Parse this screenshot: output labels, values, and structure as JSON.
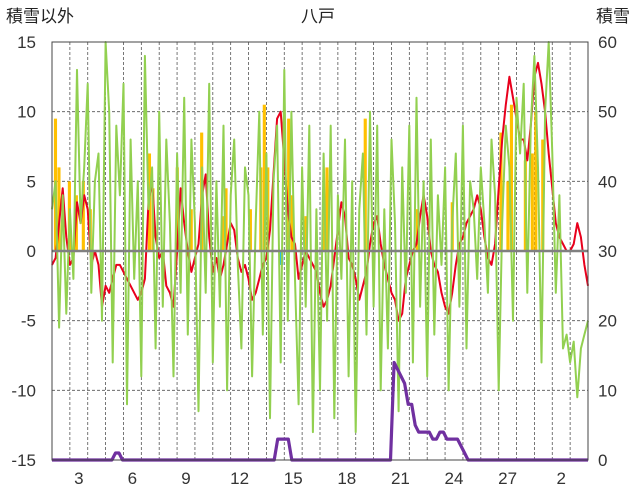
{
  "chart_data": {
    "type": "line",
    "title": "八戸",
    "y_left_label": "積雪以外",
    "y_right_label": "積雪",
    "ylim_left": [
      -15,
      15
    ],
    "ylim_right": [
      0,
      60
    ],
    "y_left_ticks": [
      "15",
      "10",
      "5",
      "0",
      "-5",
      "-10",
      "-15"
    ],
    "y_right_ticks": [
      "60",
      "50",
      "40",
      "30",
      "20",
      "10",
      "0"
    ],
    "x_ticks": [
      "3",
      "6",
      "9",
      "12",
      "15",
      "18",
      "21",
      "24",
      "27",
      "2"
    ],
    "grid": true,
    "colors": {
      "precip": "#ffc000",
      "temperature": "#e8001c",
      "wind": "#92d050",
      "snow": "#7030a0",
      "sunshine": "#00b0f0",
      "zero_line": "#808080"
    },
    "series": [
      {
        "key": "temperature",
        "axis": "left",
        "values": [
          -1.0,
          -0.5,
          2.0,
          4.5,
          1.0,
          -1.0,
          -0.5,
          3.5,
          2.0,
          4.0,
          3.0,
          -1.0,
          0.0,
          -1.0,
          -4.0,
          -2.5,
          -3.0,
          -2.0,
          -1.0,
          -1.0,
          -1.5,
          -2.0,
          -2.5,
          -3.0,
          -3.5,
          -3.0,
          -2.0,
          3.5,
          5.0,
          1.0,
          -0.5,
          0.0,
          -2.5,
          -3.0,
          -4.0,
          0.0,
          4.5,
          2.0,
          0.0,
          -1.5,
          -0.5,
          0.5,
          4.0,
          5.5,
          1.0,
          -1.5,
          -0.5,
          -2.0,
          -1.0,
          0.5,
          2.0,
          1.5,
          -0.5,
          -1.5,
          -1.0,
          -2.0,
          -3.5,
          -3.0,
          -2.0,
          -1.0,
          -0.5,
          1.5,
          5.5,
          9.5,
          10.0,
          6.5,
          3.0,
          1.0,
          0.5,
          -2.0,
          -1.0,
          0.0,
          -0.5,
          -1.0,
          -1.5,
          -3.0,
          -4.0,
          -3.5,
          -2.5,
          -0.5,
          1.5,
          3.5,
          2.5,
          -0.5,
          -1.0,
          -2.0,
          -3.5,
          -2.5,
          -1.5,
          0.5,
          2.0,
          2.5,
          0.5,
          -1.0,
          -2.0,
          -3.0,
          -3.5,
          -5.0,
          -4.5,
          -2.0,
          -1.0,
          0.0,
          0.5,
          2.5,
          4.0,
          2.5,
          0.0,
          -1.0,
          -1.5,
          -3.0,
          -4.0,
          -4.5,
          -3.0,
          -1.0,
          0.5,
          1.0,
          2.0,
          2.5,
          3.0,
          4.0,
          3.0,
          1.0,
          -0.5,
          -1.0,
          0.5,
          4.5,
          8.0,
          10.5,
          12.5,
          11.0,
          9.5,
          8.0,
          8.0,
          6.5,
          9.0,
          12.5,
          13.5,
          12.0,
          10.0,
          7.0,
          4.5,
          2.0,
          1.0,
          0.5,
          0.0,
          0.0,
          0.5,
          2.0,
          1.0,
          -1.0,
          -2.5
        ]
      },
      {
        "key": "wind",
        "axis": "left",
        "values": [
          3.0,
          5.0,
          -5.5,
          4.0,
          -4.5,
          3.0,
          -2.0,
          13.0,
          2.0,
          6.0,
          12.0,
          -3.0,
          5.0,
          7.0,
          -5.0,
          15.0,
          10.0,
          -8.0,
          9.0,
          4.0,
          12.0,
          -11.0,
          8.0,
          -2.0,
          5.0,
          -9.0,
          14.0,
          3.0,
          6.0,
          -7.0,
          10.0,
          -4.0,
          8.0,
          2.0,
          -9.0,
          7.0,
          -3.0,
          11.0,
          -6.0,
          8.0,
          2.0,
          -11.5,
          6.0,
          -3.0,
          12.0,
          -8.0,
          5.0,
          -4.0,
          9.0,
          -10.0,
          4.0,
          8.0,
          -1.0,
          -7.0,
          6.0,
          4.0,
          -9.0,
          2.0,
          10.0,
          -6.0,
          7.0,
          -12.0,
          5.0,
          9.0,
          -8.0,
          13.0,
          -5.0,
          10.0,
          -2.0,
          -11.0,
          6.0,
          -4.0,
          9.0,
          -13.0,
          3.0,
          -10.0,
          7.0,
          -5.0,
          9.0,
          -12.0,
          4.0,
          -2.0,
          8.0,
          -9.0,
          5.0,
          -13.0,
          3.0,
          7.0,
          -6.0,
          10.0,
          -4.0,
          9.0,
          -10.0,
          3.0,
          -7.0,
          8.0,
          2.0,
          -11.5,
          6.0,
          -3.0,
          9.0,
          -8.0,
          11.0,
          -4.0,
          5.0,
          -9.0,
          8.0,
          -6.0,
          4.0,
          -1.0,
          6.0,
          -10.0,
          2.0,
          7.0,
          -4.0,
          9.0,
          -7.0,
          5.0,
          3.0,
          -2.0,
          6.0,
          2.0,
          -3.0,
          8.0,
          4.0,
          -10.0,
          2.0,
          9.0,
          6.0,
          -5.0,
          11.0,
          7.0,
          12.0,
          -3.0,
          9.0,
          14.0,
          6.0,
          -8.0,
          10.0,
          15.0,
          7.0,
          -3.0,
          4.0,
          -7.0,
          -6.0,
          -8.0,
          -6.5,
          -10.5,
          -7.0,
          -6.0,
          -5.0
        ]
      },
      {
        "key": "snow",
        "axis": "right",
        "values": [
          0,
          0,
          0,
          0,
          0,
          0,
          0,
          0,
          0,
          0,
          0,
          0,
          0,
          0,
          0,
          0,
          0,
          0,
          1,
          1,
          0,
          0,
          0,
          0,
          0,
          0,
          0,
          0,
          0,
          0,
          0,
          0,
          0,
          0,
          0,
          0,
          0,
          0,
          0,
          0,
          0,
          0,
          0,
          0,
          0,
          0,
          0,
          0,
          0,
          0,
          0,
          0,
          0,
          0,
          0,
          0,
          0,
          0,
          0,
          0,
          0,
          0,
          0,
          0,
          3,
          3,
          3,
          3,
          0,
          0,
          0,
          0,
          0,
          0,
          0,
          0,
          0,
          0,
          0,
          0,
          0,
          0,
          0,
          0,
          0,
          0,
          0,
          0,
          0,
          0,
          0,
          0,
          0,
          0,
          0,
          0,
          0,
          14,
          13,
          12,
          11,
          8,
          8,
          5,
          4,
          4,
          4,
          4,
          3,
          3,
          4,
          4,
          3,
          3,
          3,
          3,
          2,
          1,
          0,
          0,
          0,
          0,
          0,
          0,
          0,
          0,
          0,
          0,
          0,
          0,
          0,
          0,
          0,
          0,
          0,
          0,
          0,
          0,
          0,
          0,
          0,
          0,
          0,
          0,
          0,
          0,
          0,
          0,
          0,
          0,
          0,
          0,
          0
        ]
      },
      {
        "key": "precip",
        "axis": "left",
        "type": "bar",
        "values": [
          0,
          9.5,
          6,
          0,
          0,
          5,
          0,
          4,
          0,
          5,
          0,
          3,
          0,
          0,
          0,
          0,
          0,
          0,
          0,
          0,
          0,
          0,
          0,
          0,
          0,
          0,
          0,
          0,
          7,
          4.5,
          0,
          0,
          0,
          0,
          0,
          0,
          6,
          0,
          0,
          0,
          3,
          0,
          0,
          8.5,
          0,
          0,
          0,
          0,
          0,
          2.5,
          4.5,
          0,
          0,
          0,
          0,
          0,
          0,
          3,
          0,
          0,
          6,
          10.5,
          6,
          0,
          0,
          0,
          0,
          0,
          9.5,
          4,
          0,
          0,
          0,
          2.5,
          0,
          0,
          0,
          0,
          3,
          6,
          0,
          0,
          0,
          0,
          0,
          0,
          0,
          0,
          0,
          0,
          9.5,
          0,
          0,
          0,
          0,
          0,
          0,
          0,
          0,
          0,
          0,
          0,
          0,
          0,
          0,
          3,
          0,
          0,
          0,
          0,
          0,
          0,
          0,
          0,
          0,
          3.5,
          0,
          0,
          0,
          0,
          0,
          0,
          0,
          0,
          0,
          0,
          0,
          0,
          0,
          8.5,
          0,
          5,
          10.5,
          0,
          0,
          0,
          6.5,
          0,
          7,
          10,
          0,
          8,
          0,
          0,
          0,
          0,
          0,
          0,
          0,
          0,
          0,
          0,
          0,
          0,
          0
        ]
      },
      {
        "key": "sunshine",
        "axis": "left",
        "type": "bar",
        "values": [
          0,
          0,
          0,
          0,
          0,
          0,
          0,
          0,
          0,
          0,
          0,
          0,
          0,
          0,
          0,
          0,
          0,
          0,
          0,
          0,
          0,
          0,
          0,
          0,
          0,
          0,
          0,
          0,
          0,
          0,
          0,
          0,
          0,
          0,
          0,
          0,
          0,
          0,
          0,
          0,
          0,
          0,
          0,
          0,
          0,
          0,
          0,
          0,
          0,
          0,
          0,
          0,
          0,
          0,
          0,
          0,
          0,
          0,
          0,
          0,
          0,
          0,
          0,
          0,
          0,
          0,
          -1,
          0,
          0,
          0,
          0,
          0,
          0,
          0,
          0,
          0,
          0,
          0,
          0,
          0,
          0,
          0,
          0,
          0,
          0,
          0,
          0,
          0,
          0,
          0,
          0,
          0,
          0,
          0,
          0,
          0,
          0,
          0,
          0,
          0,
          0,
          0,
          0,
          0,
          0,
          0,
          0,
          0,
          0,
          0,
          0,
          0,
          0,
          0,
          0,
          0,
          0,
          0,
          0,
          0,
          0,
          0,
          0,
          0,
          0,
          0,
          0,
          0,
          0,
          0,
          0,
          0,
          0,
          0,
          0,
          0,
          0,
          0,
          0,
          0,
          0,
          0,
          0,
          0,
          0,
          0,
          0,
          0,
          0,
          0,
          0,
          0,
          0,
          0,
          0
        ]
      }
    ]
  }
}
